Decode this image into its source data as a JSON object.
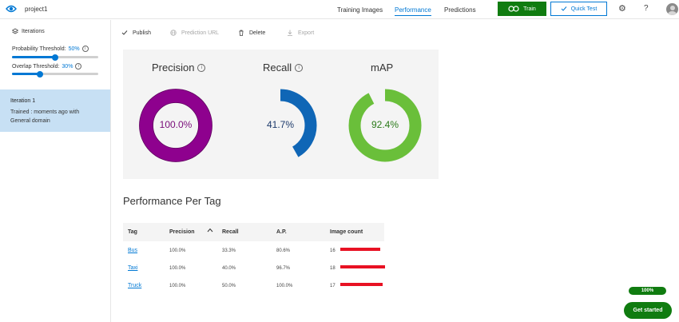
{
  "header": {
    "project_name": "project1",
    "nav": [
      {
        "label": "Training Images",
        "active": false
      },
      {
        "label": "Performance",
        "active": true
      },
      {
        "label": "Predictions",
        "active": false
      }
    ],
    "train_label": "Train",
    "quick_test_label": "Quick Test",
    "help_label": "?"
  },
  "sidebar": {
    "heading": "Iterations",
    "probability": {
      "label": "Probability Threshold:",
      "value_text": "50%",
      "value": 0.5
    },
    "overlap": {
      "label": "Overlap Threshold:",
      "value_text": "30%",
      "value": 0.3
    },
    "iteration": {
      "title": "Iteration 1",
      "subtitle": "Trained : moments ago with General domain"
    }
  },
  "commands": {
    "publish": "Publish",
    "prediction_url": "Prediction URL",
    "delete": "Delete",
    "export": "Export"
  },
  "metrics": [
    {
      "name": "Precision",
      "value_text": "100.0%",
      "value": 1.0,
      "color": "#8e018e",
      "text_color": "#7a0d7a"
    },
    {
      "name": "Recall",
      "value_text": "41.7%",
      "value": 0.417,
      "color": "#0f66b6",
      "text_color": "#1d3a6b"
    },
    {
      "name": "mAP",
      "value_text": "92.4%",
      "value": 0.924,
      "color": "#6abf3a",
      "text_color": "#2b7a1a"
    }
  ],
  "ppt": {
    "title": "Performance Per Tag",
    "columns": [
      "Tag",
      "Precision",
      "Recall",
      "A.P.",
      "Image count"
    ],
    "rows": [
      {
        "tag": "Bus",
        "precision": "100.0%",
        "recall": "33.3%",
        "ap": "80.6%",
        "count": "16",
        "count_value": 16
      },
      {
        "tag": "Taxi",
        "precision": "100.0%",
        "recall": "40.0%",
        "ap": "96.7%",
        "count": "18",
        "count_value": 18
      },
      {
        "tag": "Truck",
        "precision": "100.0%",
        "recall": "50.0%",
        "ap": "100.0%",
        "count": "17",
        "count_value": 17
      }
    ]
  },
  "footer": {
    "progress_text": "100%",
    "get_started": "Get started"
  }
}
